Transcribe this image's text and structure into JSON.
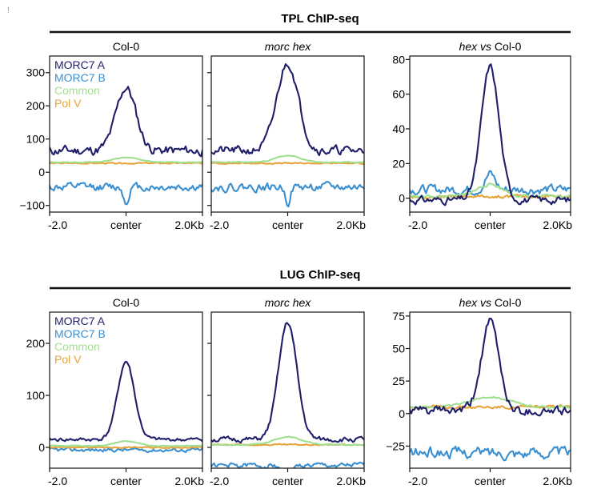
{
  "chart_data": {
    "type": "line",
    "colors": {
      "MORC7 A": "#1f1f6b",
      "MORC7 B": "#3a8fd1",
      "Common": "#9fe08f",
      "Pol V": "#e8a43a"
    },
    "x_tick_labels": [
      "-2.0",
      "center",
      "2.0Kb"
    ],
    "blocks": [
      {
        "title": "TPL ChIP-seq",
        "panels": [
          {
            "title": "Col-0",
            "title_italic": false,
            "legend": [
              "MORC7 A",
              "MORC7 B",
              "Common",
              "Pol V"
            ],
            "ylim": [
              -120,
              350
            ],
            "yticks": [
              -100,
              0,
              100,
              200,
              300
            ],
            "ytick_labels": [
              "−100",
              "0",
              "100",
              "200",
              "300"
            ],
            "series": [
              {
                "name": "MORC7 A",
                "shape": "peak",
                "base": 65,
                "peak": 255,
                "width": 0.065,
                "noise": 12,
                "seed": 11
              },
              {
                "name": "MORC7 B",
                "shape": "dip",
                "base": -45,
                "peak": -95,
                "width": 0.015,
                "noise": 10,
                "seed": 12
              },
              {
                "name": "Common",
                "shape": "peak",
                "base": 30,
                "peak": 45,
                "width": 0.08,
                "noise": 1,
                "seed": 13
              },
              {
                "name": "Pol V",
                "shape": "flat",
                "base": 27,
                "noise": 1.5,
                "seed": 14
              }
            ]
          },
          {
            "title": "morc hex",
            "title_italic": true,
            "legend": [],
            "ylim": [
              -120,
              350
            ],
            "yticks": [
              -100,
              0,
              100,
              200,
              300
            ],
            "ytick_labels": [
              "",
              "",
              "",
              "",
              ""
            ],
            "series": [
              {
                "name": "MORC7 A",
                "shape": "peak",
                "base": 65,
                "peak": 330,
                "width": 0.07,
                "noise": 11,
                "seed": 21
              },
              {
                "name": "MORC7 B",
                "shape": "dip",
                "base": -45,
                "peak": -90,
                "width": 0.015,
                "noise": 10,
                "seed": 22
              },
              {
                "name": "Common",
                "shape": "peak",
                "base": 30,
                "peak": 50,
                "width": 0.08,
                "noise": 1,
                "seed": 23
              },
              {
                "name": "Pol V",
                "shape": "flat",
                "base": 27,
                "noise": 1.5,
                "seed": 24
              }
            ]
          },
          {
            "title": "hex vs Col-0",
            "title_italic": true,
            "title_italic_part": "hex vs",
            "title_plain_part": " Col-0",
            "legend": [],
            "ylim": [
              -8,
              82
            ],
            "yticks": [
              0,
              20,
              40,
              60,
              80
            ],
            "ytick_labels": [
              "0",
              "20",
              "40",
              "60",
              "80"
            ],
            "series": [
              {
                "name": "MORC7 A",
                "shape": "peak",
                "base": -1,
                "peak": 76,
                "width": 0.055,
                "noise": 1.8,
                "seed": 31
              },
              {
                "name": "MORC7 B",
                "shape": "peak",
                "base": 5,
                "peak": 14,
                "width": 0.03,
                "noise": 2.2,
                "seed": 32
              },
              {
                "name": "Common",
                "shape": "peak",
                "base": 1,
                "peak": 8,
                "width": 0.08,
                "noise": 0.7,
                "seed": 33
              },
              {
                "name": "Pol V",
                "shape": "flat",
                "base": 1,
                "noise": 0.8,
                "seed": 34
              }
            ]
          }
        ]
      },
      {
        "title": "LUG ChIP-seq",
        "panels": [
          {
            "title": "Col-0",
            "title_italic": false,
            "legend": [
              "MORC7 A",
              "MORC7 B",
              "Common",
              "Pol V"
            ],
            "ylim": [
              -40,
              260
            ],
            "yticks": [
              0,
              100,
              200
            ],
            "ytick_labels": [
              "0",
              "100",
              "200"
            ],
            "series": [
              {
                "name": "MORC7 A",
                "shape": "peak",
                "base": 15,
                "peak": 165,
                "width": 0.055,
                "noise": 3,
                "seed": 41
              },
              {
                "name": "MORC7 B",
                "shape": "flat",
                "base": -5,
                "noise": 3,
                "seed": 42
              },
              {
                "name": "Common",
                "shape": "peak",
                "base": 3,
                "peak": 12,
                "width": 0.07,
                "noise": 0.6,
                "seed": 43
              },
              {
                "name": "Pol V",
                "shape": "flat",
                "base": 0,
                "noise": 1,
                "seed": 44
              }
            ]
          },
          {
            "title": "morc hex",
            "title_italic": true,
            "legend": [],
            "ylim": [
              -40,
              260
            ],
            "yticks": [
              0,
              100,
              200
            ],
            "ytick_labels": [
              "",
              "",
              ""
            ],
            "series": [
              {
                "name": "MORC7 A",
                "shape": "peak",
                "base": 15,
                "peak": 240,
                "width": 0.06,
                "noise": 4,
                "seed": 51
              },
              {
                "name": "MORC7 B",
                "shape": "dip",
                "base": -35,
                "peak": -50,
                "width": 0.03,
                "noise": 4,
                "seed": 52
              },
              {
                "name": "Common",
                "shape": "peak",
                "base": 5,
                "peak": 20,
                "width": 0.09,
                "noise": 0.8,
                "seed": 53
              },
              {
                "name": "Pol V",
                "shape": "flat",
                "base": 5,
                "noise": 1,
                "seed": 54
              }
            ]
          },
          {
            "title": "hex vs Col-0",
            "title_italic": true,
            "title_italic_part": "hex vs",
            "title_plain_part": " Col-0",
            "legend": [],
            "ylim": [
              -42,
              78
            ],
            "yticks": [
              -25,
              0,
              25,
              50,
              75
            ],
            "ytick_labels": [
              "−25",
              "0",
              "25",
              "50",
              "75"
            ],
            "series": [
              {
                "name": "MORC7 A",
                "shape": "peak",
                "base": 2,
                "peak": 70,
                "width": 0.055,
                "noise": 3,
                "seed": 61
              },
              {
                "name": "MORC7 B",
                "shape": "flat",
                "base": -30,
                "noise": 3.5,
                "seed": 62
              },
              {
                "name": "Common",
                "shape": "peak",
                "base": 5,
                "peak": 13,
                "width": 0.12,
                "noise": 0.6,
                "seed": 63
              },
              {
                "name": "Pol V",
                "shape": "flat",
                "base": 5,
                "noise": 1,
                "seed": 64
              }
            ]
          }
        ]
      }
    ]
  },
  "corner_mark": "!"
}
